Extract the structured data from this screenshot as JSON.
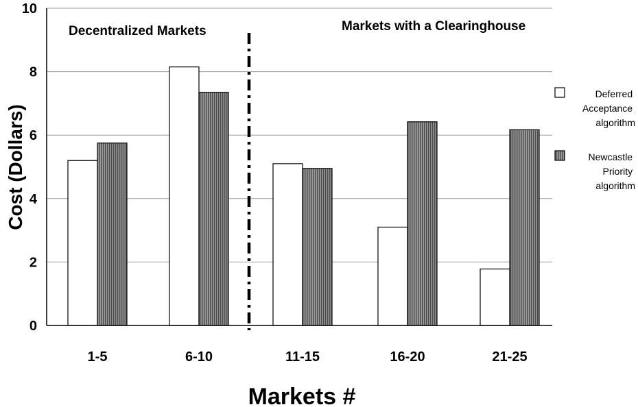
{
  "chart_data": {
    "type": "bar",
    "title": "",
    "xlabel": "Markets #",
    "ylabel": "Cost (Dollars)",
    "categories": [
      "1-5",
      "6-10",
      "11-15",
      "16-20",
      "21-25"
    ],
    "series": [
      {
        "name": "Deferred Acceptance algorithm",
        "values": [
          5.2,
          8.15,
          5.1,
          3.1,
          1.78
        ],
        "fill": "white"
      },
      {
        "name": "Newcastle Priority algorithm",
        "values": [
          5.75,
          7.35,
          4.95,
          6.42,
          6.17
        ],
        "fill": "hatched-gray"
      }
    ],
    "ylim": [
      0,
      10
    ],
    "yticks": [
      0,
      2,
      4,
      6,
      8,
      10
    ],
    "grid": true,
    "legend_position": "right",
    "annotations": [
      {
        "text": "Decentralized Markets",
        "region": "left"
      },
      {
        "text": "Markets with a Clearinghouse",
        "region": "right"
      }
    ],
    "divider": {
      "between_categories": [
        1,
        2
      ],
      "style": "dash-dot"
    },
    "colors": {
      "bar_stroke": "#000000",
      "hatch_fill": "#7a7a7a",
      "grid": "#999999"
    }
  }
}
